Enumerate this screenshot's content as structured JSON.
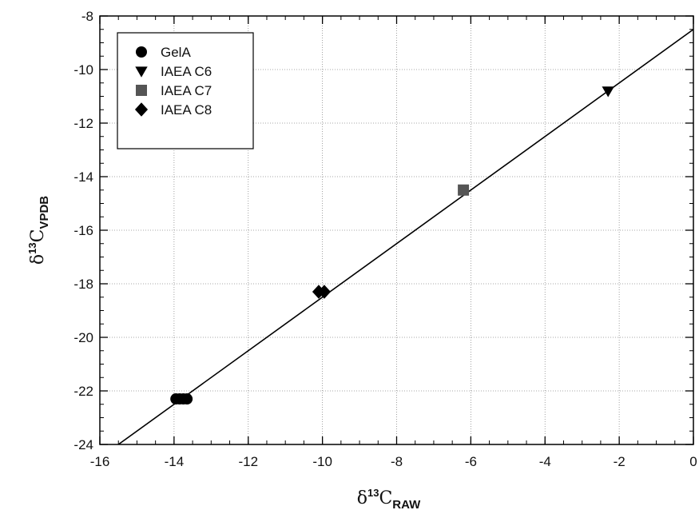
{
  "chart_data": {
    "type": "scatter",
    "xlabel": {
      "symbol": "δ",
      "sup": "13",
      "main": "C",
      "sub": "RAW"
    },
    "ylabel": {
      "symbol": "δ",
      "sup": "13",
      "main": "C",
      "sub": "VPDB"
    },
    "xlim": [
      -16,
      0
    ],
    "ylim": [
      -24,
      -8
    ],
    "x_ticks": [
      -16,
      -14,
      -12,
      -10,
      -8,
      -6,
      -4,
      -2,
      0
    ],
    "y_ticks": [
      -24,
      -22,
      -20,
      -18,
      -16,
      -14,
      -12,
      -10,
      -8
    ],
    "grid": true,
    "legend_position": "top-left",
    "series": [
      {
        "name": "GelA",
        "marker": "circle",
        "color": "#000000",
        "points": [
          {
            "x": -13.95,
            "y": -22.3
          },
          {
            "x": -13.85,
            "y": -22.3
          },
          {
            "x": -13.75,
            "y": -22.3
          },
          {
            "x": -13.65,
            "y": -22.3
          }
        ]
      },
      {
        "name": "IAEA C6",
        "marker": "triangle-down",
        "color": "#000000",
        "points": [
          {
            "x": -2.3,
            "y": -10.8
          }
        ]
      },
      {
        "name": "IAEA C7",
        "marker": "square",
        "color": "#555555",
        "points": [
          {
            "x": -6.2,
            "y": -14.5
          }
        ]
      },
      {
        "name": "IAEA C8",
        "marker": "diamond",
        "color": "#000000",
        "points": [
          {
            "x": -10.1,
            "y": -18.3
          },
          {
            "x": -9.95,
            "y": -18.3
          }
        ]
      }
    ],
    "fit_line": {
      "x_start": -16,
      "y_start": -24.5,
      "x_end": 0,
      "y_end": -8.5,
      "color": "#000000"
    }
  }
}
